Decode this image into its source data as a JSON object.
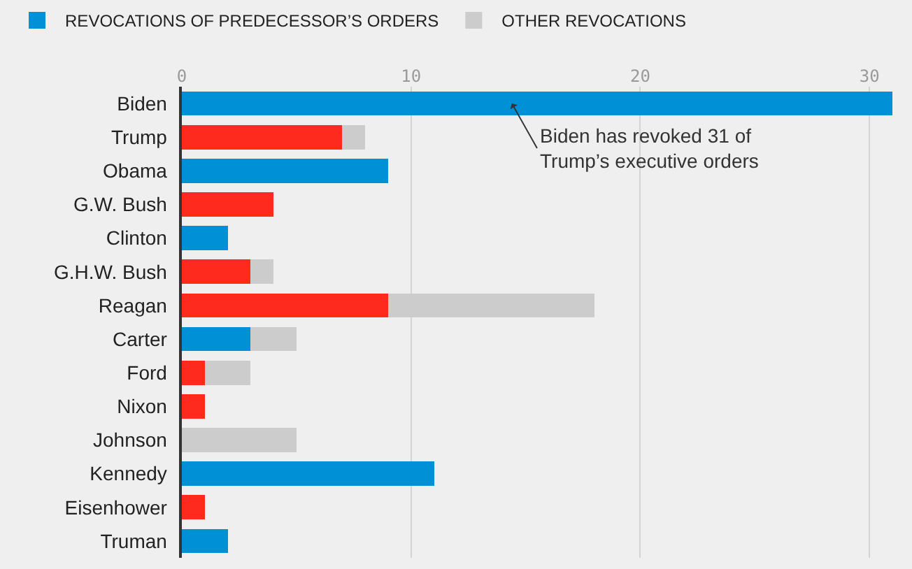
{
  "chart_data": {
    "type": "bar",
    "orientation": "horizontal",
    "stacked": true,
    "categories": [
      "Biden",
      "Trump",
      "Obama",
      "G.W. Bush",
      "Clinton",
      "G.H.W. Bush",
      "Reagan",
      "Carter",
      "Ford",
      "Nixon",
      "Johnson",
      "Kennedy",
      "Eisenhower",
      "Truman"
    ],
    "series": [
      {
        "name": "REVOCATIONS OF PREDECESSOR’S ORDERS",
        "colors": [
          "#0090d6",
          "#ff2a1e",
          "#0090d6",
          "#ff2a1e",
          "#0090d6",
          "#ff2a1e",
          "#ff2a1e",
          "#0090d6",
          "#ff2a1e",
          "#ff2a1e",
          "#0090d6",
          "#0090d6",
          "#ff2a1e",
          "#0090d6"
        ],
        "values": [
          31,
          7,
          9,
          4,
          2,
          3,
          9,
          3,
          1,
          1,
          0,
          11,
          1,
          2
        ]
      },
      {
        "name": "OTHER REVOCATIONS",
        "color": "#cccccc",
        "values": [
          0,
          1,
          0,
          0,
          0,
          1,
          9,
          2,
          2,
          0,
          5,
          0,
          0,
          0
        ]
      }
    ],
    "xlim": [
      0,
      31
    ],
    "xticks": [
      0,
      10,
      20,
      30
    ],
    "grid": "x",
    "legend": "top left",
    "annotations": [
      {
        "text": "Biden has revoked 31 of\nTrump’s executive orders",
        "x": 14.4,
        "y": "Biden"
      }
    ]
  }
}
